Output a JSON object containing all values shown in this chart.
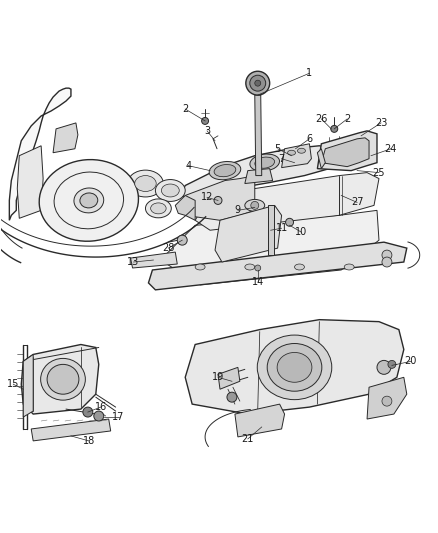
{
  "background_color": "#ffffff",
  "fig_width": 4.38,
  "fig_height": 5.33,
  "dpi": 100,
  "line_color": "#2a2a2a",
  "light_gray": "#c8c8c8",
  "mid_gray": "#a0a0a0",
  "dark_gray": "#555555",
  "fill_light": "#efefef",
  "fill_mid": "#dcdcdc",
  "fill_dark": "#c0c0c0",
  "label_fontsize": 7.0,
  "label_color": "#1a1a1a"
}
